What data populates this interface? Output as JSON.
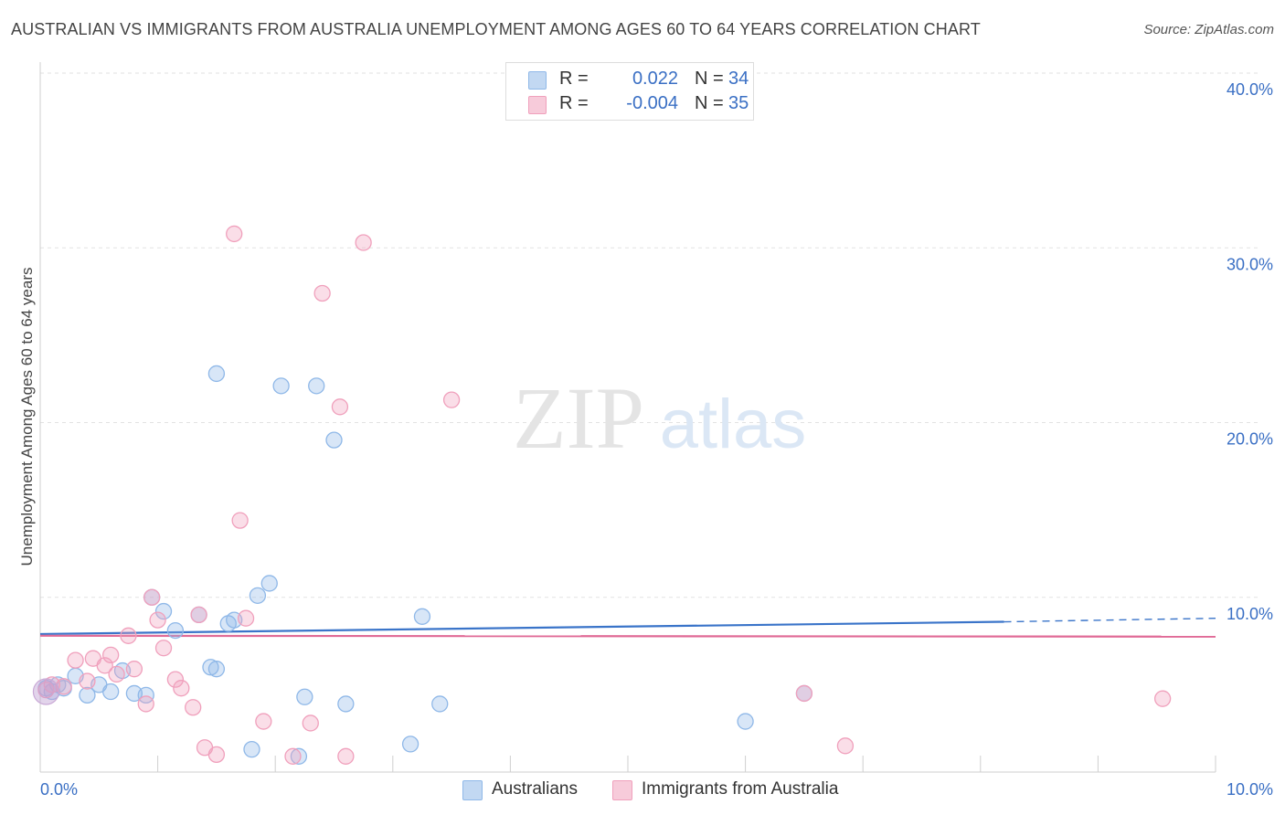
{
  "chart_data": {
    "type": "scatter",
    "title": "AUSTRALIAN VS IMMIGRANTS FROM AUSTRALIA UNEMPLOYMENT AMONG AGES 60 TO 64 YEARS CORRELATION CHART",
    "source": "Source: ZipAtlas.com",
    "xlabel": "",
    "ylabel": "Unemployment Among Ages 60 to 64 years",
    "xlim": [
      0,
      10
    ],
    "ylim": [
      0,
      40
    ],
    "x_tick_labels": [
      "0.0%",
      "10.0%"
    ],
    "y_tick_values": [
      10,
      20,
      30,
      40
    ],
    "y_tick_labels": [
      "10.0%",
      "20.0%",
      "30.0%",
      "40.0%"
    ],
    "watermark": {
      "part1": "ZIP",
      "part2": "atlas"
    },
    "legend": {
      "rows": [
        {
          "r_label": "R =",
          "r_value": "0.022",
          "n_label": "N =",
          "n_value": "34"
        },
        {
          "r_label": "R =",
          "r_value": "-0.004",
          "n_label": "N =",
          "n_value": "35"
        }
      ]
    },
    "series": [
      {
        "name": "Australians",
        "color": "#8fb8e8",
        "fill": "rgba(143,184,232,0.35)",
        "line_color": "#3a74c9",
        "trend": {
          "x0": 0.0,
          "y0": 7.9,
          "x1": 8.2,
          "y1": 8.6,
          "x_dash_end": 10.0,
          "y_dash_end": 8.8
        },
        "points": [
          [
            0.05,
            4.8
          ],
          [
            0.1,
            4.6
          ],
          [
            0.15,
            5.0
          ],
          [
            0.2,
            4.8
          ],
          [
            0.3,
            5.5
          ],
          [
            0.4,
            4.4
          ],
          [
            0.5,
            5.0
          ],
          [
            0.6,
            4.6
          ],
          [
            0.7,
            5.8
          ],
          [
            0.8,
            4.5
          ],
          [
            0.9,
            4.4
          ],
          [
            0.95,
            10.0
          ],
          [
            1.05,
            9.2
          ],
          [
            1.15,
            8.1
          ],
          [
            1.35,
            9.0
          ],
          [
            1.45,
            6.0
          ],
          [
            1.5,
            5.9
          ],
          [
            1.5,
            22.8
          ],
          [
            1.6,
            8.5
          ],
          [
            1.65,
            8.7
          ],
          [
            1.8,
            1.3
          ],
          [
            1.85,
            10.1
          ],
          [
            1.95,
            10.8
          ],
          [
            2.05,
            22.1
          ],
          [
            2.2,
            0.9
          ],
          [
            2.25,
            4.3
          ],
          [
            2.35,
            22.1
          ],
          [
            2.5,
            19.0
          ],
          [
            2.6,
            3.9
          ],
          [
            3.15,
            1.6
          ],
          [
            3.25,
            8.9
          ],
          [
            3.4,
            3.9
          ],
          [
            6.0,
            2.9
          ],
          [
            6.5,
            4.5
          ]
        ]
      },
      {
        "name": "Immigrants from Australia",
        "color": "#f0a0bc",
        "fill": "rgba(240,160,188,0.35)",
        "line_color": "#e06a96",
        "trend": {
          "x0": 0.0,
          "y0": 7.8,
          "x1": 10.0,
          "y1": 7.75
        },
        "points": [
          [
            0.05,
            4.7
          ],
          [
            0.1,
            5.0
          ],
          [
            0.2,
            4.9
          ],
          [
            0.3,
            6.4
          ],
          [
            0.4,
            5.2
          ],
          [
            0.45,
            6.5
          ],
          [
            0.55,
            6.1
          ],
          [
            0.6,
            6.7
          ],
          [
            0.65,
            5.6
          ],
          [
            0.75,
            7.8
          ],
          [
            0.8,
            5.9
          ],
          [
            0.9,
            3.9
          ],
          [
            0.95,
            10.0
          ],
          [
            1.0,
            8.7
          ],
          [
            1.05,
            7.1
          ],
          [
            1.15,
            5.3
          ],
          [
            1.2,
            4.8
          ],
          [
            1.3,
            3.7
          ],
          [
            1.35,
            9.0
          ],
          [
            1.4,
            1.4
          ],
          [
            1.5,
            1.0
          ],
          [
            1.65,
            30.8
          ],
          [
            1.7,
            14.4
          ],
          [
            1.75,
            8.8
          ],
          [
            1.9,
            2.9
          ],
          [
            2.15,
            0.9
          ],
          [
            2.3,
            2.8
          ],
          [
            2.4,
            27.4
          ],
          [
            2.55,
            20.9
          ],
          [
            2.6,
            0.9
          ],
          [
            2.75,
            30.3
          ],
          [
            3.5,
            21.3
          ],
          [
            6.5,
            4.5
          ],
          [
            6.85,
            1.5
          ],
          [
            9.55,
            4.2
          ]
        ]
      }
    ]
  }
}
